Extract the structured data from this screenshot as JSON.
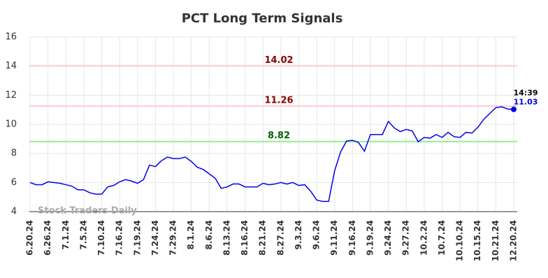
{
  "chart_data": {
    "type": "line",
    "title": "PCT Long Term Signals",
    "watermark": "Stock Traders Daily",
    "categories": [
      "6.20.24",
      null,
      null,
      "6.26.24",
      null,
      null,
      "7.1.24",
      null,
      null,
      "7.5.24",
      null,
      null,
      "7.10.24",
      null,
      null,
      "7.16.24",
      null,
      null,
      "7.19.24",
      null,
      null,
      "7.24.24",
      null,
      null,
      "7.29.24",
      null,
      null,
      "8.1.24",
      null,
      null,
      "8.6.24",
      null,
      null,
      "8.13.24",
      null,
      null,
      "8.16.24",
      null,
      null,
      "8.21.24",
      null,
      null,
      "8.27.24",
      null,
      null,
      "9.3.24",
      null,
      null,
      "9.6.24",
      null,
      null,
      "9.11.24",
      null,
      null,
      "9.16.24",
      null,
      null,
      "9.19.24",
      null,
      null,
      "9.24.24",
      null,
      null,
      "9.27.24",
      null,
      null,
      "10.2.24",
      null,
      null,
      "10.7.24",
      null,
      null,
      "10.10.24",
      null,
      null,
      "10.15.24",
      null,
      null,
      "10.21.24",
      null,
      null,
      "12.20.24"
    ],
    "series": [
      {
        "color": "#0000ee",
        "values": [
          6.0,
          5.85,
          5.85,
          6.05,
          6.0,
          5.95,
          5.85,
          5.75,
          5.5,
          5.5,
          5.3,
          5.2,
          5.2,
          5.7,
          5.8,
          6.05,
          6.2,
          6.1,
          5.95,
          6.2,
          7.2,
          7.1,
          7.5,
          7.75,
          7.65,
          7.65,
          7.75,
          7.45,
          7.05,
          6.9,
          6.6,
          6.3,
          5.6,
          5.7,
          5.9,
          5.9,
          5.7,
          5.7,
          5.7,
          5.95,
          5.85,
          5.9,
          6.0,
          5.9,
          6.0,
          5.8,
          5.85,
          5.4,
          4.8,
          4.7,
          4.7,
          6.8,
          8.1,
          8.85,
          8.9,
          8.75,
          8.15,
          9.3,
          9.3,
          9.3,
          10.2,
          9.75,
          9.5,
          9.65,
          9.55,
          8.8,
          9.1,
          9.05,
          9.3,
          9.1,
          9.45,
          9.15,
          9.1,
          9.45,
          9.4,
          9.8,
          10.35,
          10.75,
          11.15,
          11.2,
          11.05,
          11.03
        ]
      }
    ],
    "last_time": "14:39",
    "reference_lines": [
      {
        "value": 14.02,
        "color": "#ffcccc",
        "text_color": "#8b0000"
      },
      {
        "value": 11.26,
        "color": "#ffcccc",
        "text_color": "#8b0000"
      },
      {
        "value": 8.82,
        "color": "#90ee90",
        "text_color": "#006400"
      }
    ],
    "ylim": [
      4,
      16
    ],
    "yticks": [
      4,
      6,
      8,
      10,
      12,
      14,
      16
    ],
    "grid": true
  }
}
